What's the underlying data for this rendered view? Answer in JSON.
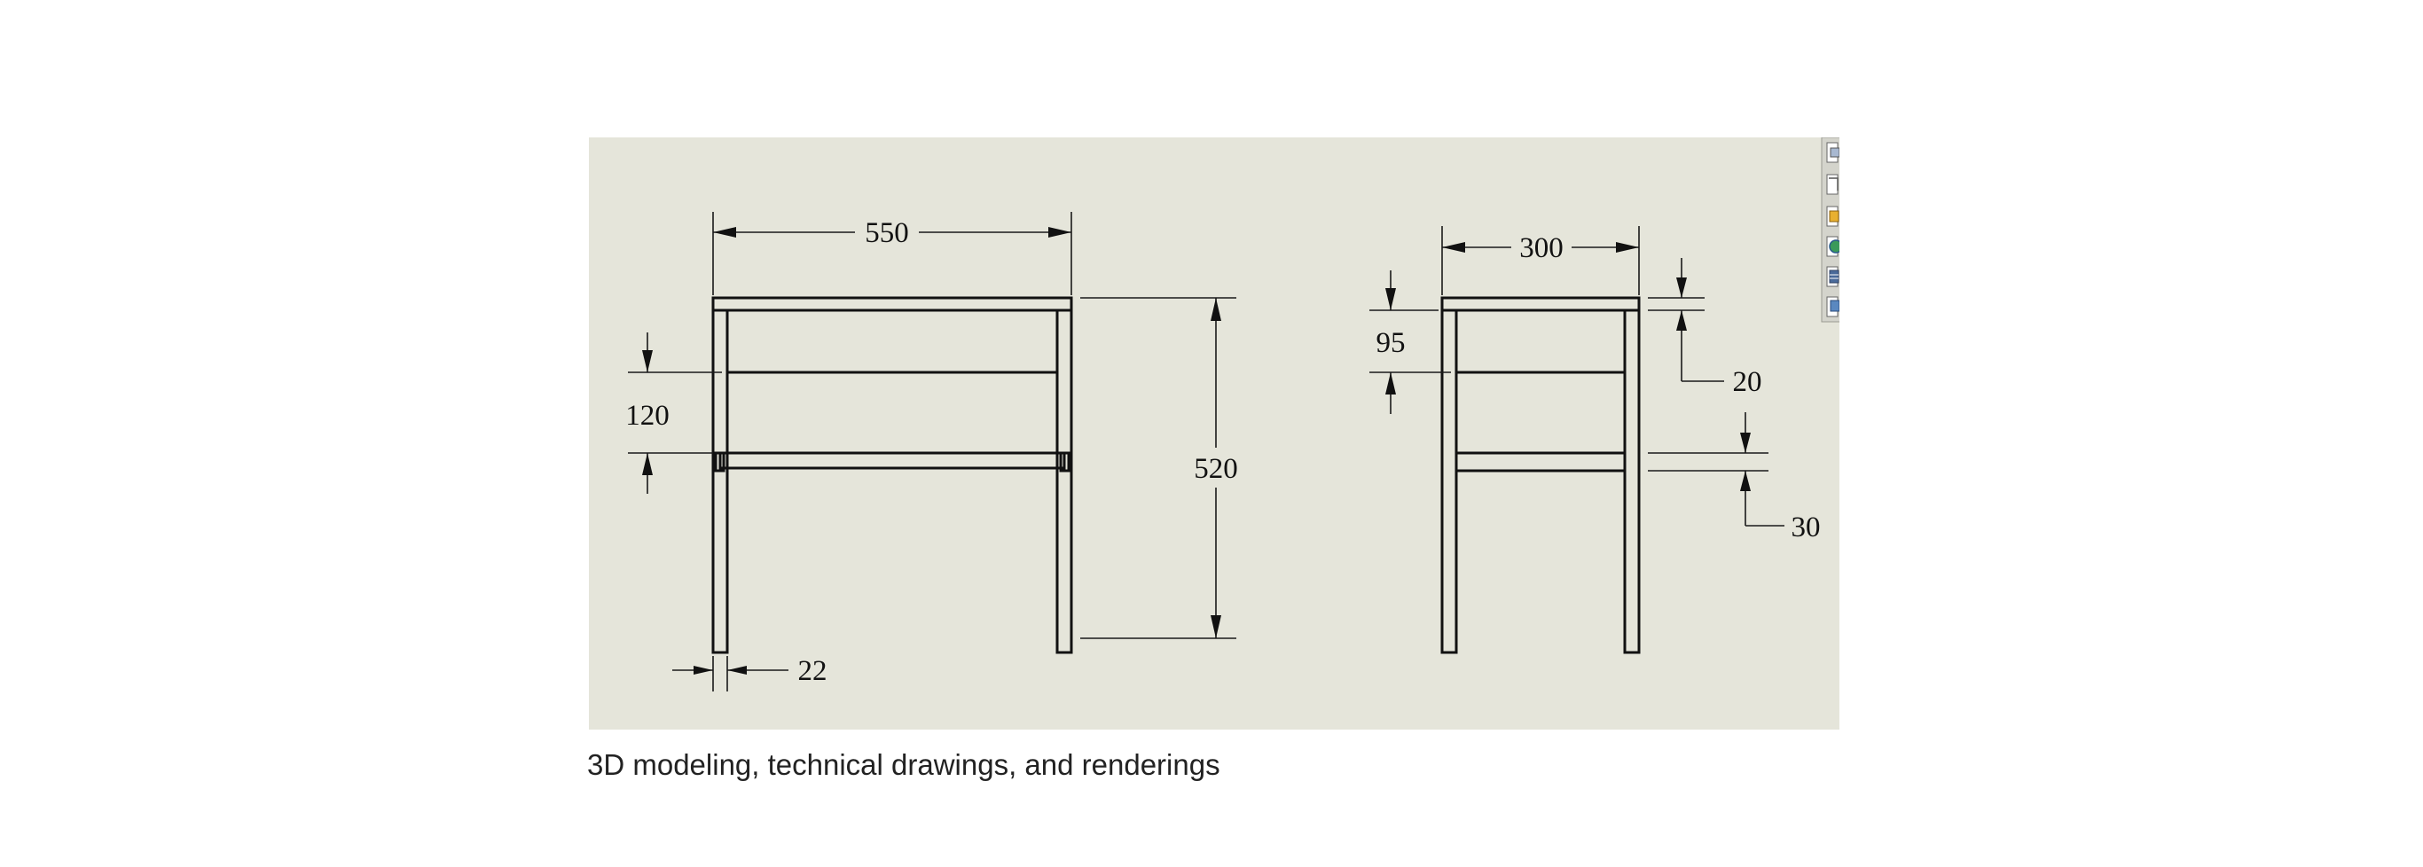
{
  "caption": "3D modeling, technical drawings, and renderings",
  "front_view": {
    "dims": {
      "width": "550",
      "height": "520",
      "shelf_gap": "120",
      "leg": "22"
    }
  },
  "side_view": {
    "dims": {
      "depth": "300",
      "apron": "95",
      "top_thickness": "20",
      "shelf_thickness": "30"
    }
  },
  "toolbar": {
    "icons": [
      "view-orientation-icon",
      "section-view-icon",
      "display-style-icon",
      "appearance-icon",
      "scene-icon",
      "view-settings-icon"
    ]
  },
  "colors": {
    "sheet_background": "#e5e5da",
    "line": "#111111"
  }
}
